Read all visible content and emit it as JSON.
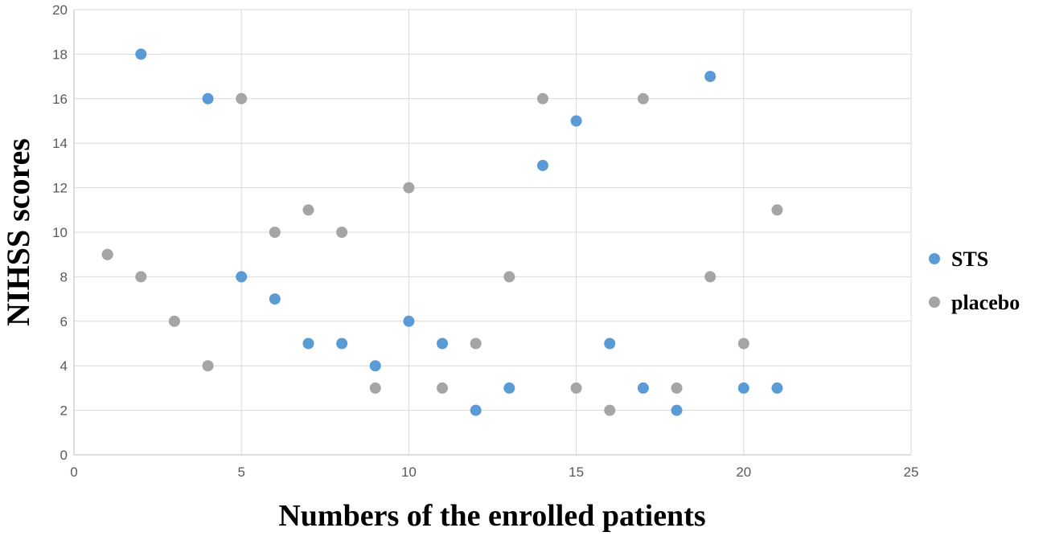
{
  "chart_data": {
    "type": "scatter",
    "xlabel": "Numbers of the enrolled patients",
    "ylabel": "NIHSS scores",
    "xlim": [
      0,
      25
    ],
    "ylim": [
      0,
      20
    ],
    "xticks": [
      0,
      5,
      10,
      15,
      20,
      25
    ],
    "yticks": [
      0,
      2,
      4,
      6,
      8,
      10,
      12,
      14,
      16,
      18,
      20
    ],
    "grid": true,
    "legend_position": "right",
    "series": [
      {
        "name": "STS",
        "color": "#5b9bd5",
        "points": [
          [
            1,
            9
          ],
          [
            2,
            18
          ],
          [
            4,
            16
          ],
          [
            5,
            8
          ],
          [
            6,
            7
          ],
          [
            7,
            5
          ],
          [
            8,
            5
          ],
          [
            9,
            4
          ],
          [
            10,
            6
          ],
          [
            11,
            5
          ],
          [
            12,
            2
          ],
          [
            13,
            3
          ],
          [
            14,
            13
          ],
          [
            15,
            15
          ],
          [
            16,
            5
          ],
          [
            17,
            3
          ],
          [
            18,
            2
          ],
          [
            19,
            17
          ],
          [
            20,
            3
          ],
          [
            21,
            3
          ]
        ]
      },
      {
        "name": "placebo",
        "color": "#a5a5a5",
        "points": [
          [
            1,
            9
          ],
          [
            2,
            8
          ],
          [
            3,
            6
          ],
          [
            4,
            4
          ],
          [
            5,
            16
          ],
          [
            6,
            10
          ],
          [
            7,
            11
          ],
          [
            8,
            10
          ],
          [
            9,
            3
          ],
          [
            10,
            12
          ],
          [
            11,
            3
          ],
          [
            12,
            5
          ],
          [
            13,
            8
          ],
          [
            14,
            16
          ],
          [
            15,
            3
          ],
          [
            16,
            2
          ],
          [
            17,
            16
          ],
          [
            18,
            3
          ],
          [
            19,
            8
          ],
          [
            20,
            5
          ],
          [
            21,
            11
          ]
        ]
      }
    ]
  }
}
